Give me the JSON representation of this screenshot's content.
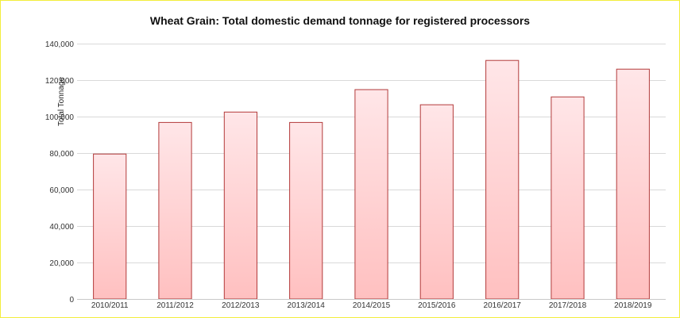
{
  "chart_data": {
    "type": "bar",
    "title": "Wheat Grain: Total domestic demand tonnage for registered processors",
    "xlabel": "",
    "ylabel": "Total Tonnage",
    "categories": [
      "2010/2011",
      "2011/2012",
      "2012/2013",
      "2013/2014",
      "2014/2015",
      "2015/2016",
      "2016/2017",
      "2017/2018",
      "2018/2019"
    ],
    "values": [
      79500,
      96800,
      102500,
      96800,
      114800,
      106500,
      130800,
      110800,
      126000
    ],
    "ylim": [
      0,
      140000
    ],
    "yticks": [
      0,
      20000,
      40000,
      60000,
      80000,
      100000,
      120000,
      140000
    ],
    "ytick_labels": [
      "0",
      "20,000",
      "40,000",
      "60,000",
      "80,000",
      "100,000",
      "120,000",
      "140,000"
    ],
    "grid": true,
    "legend": "none",
    "colors": {
      "bar_top": "#ffe6e8",
      "bar_bottom": "#ffc0c0",
      "bar_border": "#b23a3a",
      "grid": "#d9d9d9",
      "frame": "#f2ee3c"
    }
  }
}
